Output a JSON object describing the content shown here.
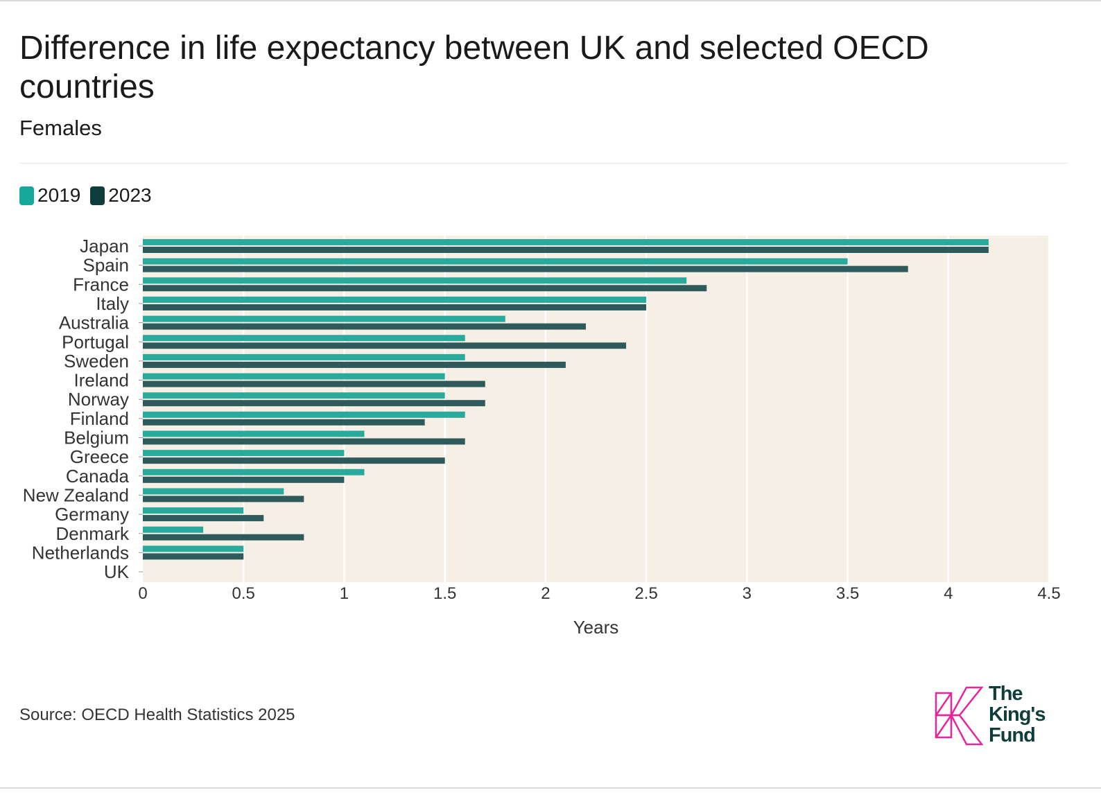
{
  "header": {
    "title": "Difference in life expectancy between UK and selected OECD countries",
    "subtitle": "Females"
  },
  "legend": [
    {
      "label": "2019",
      "color": "#17a89a"
    },
    {
      "label": "2023",
      "color": "#0f3d3e"
    }
  ],
  "chart_data": {
    "type": "bar",
    "orientation": "horizontal",
    "categories": [
      "Japan",
      "Spain",
      "France",
      "Italy",
      "Australia",
      "Portugal",
      "Sweden",
      "Ireland",
      "Norway",
      "Finland",
      "Belgium",
      "Greece",
      "Canada",
      "New Zealand",
      "Germany",
      "Denmark",
      "Netherlands",
      "UK"
    ],
    "series": [
      {
        "name": "2019",
        "color": "#2aaa9c",
        "values": [
          4.2,
          3.5,
          2.7,
          2.5,
          1.8,
          1.6,
          1.6,
          1.5,
          1.5,
          1.6,
          1.1,
          1.0,
          1.1,
          0.7,
          0.5,
          0.3,
          0.5,
          0
        ]
      },
      {
        "name": "2023",
        "color": "#2e5a5b",
        "values": [
          4.2,
          3.8,
          2.8,
          2.5,
          2.2,
          2.4,
          2.1,
          1.7,
          1.7,
          1.4,
          1.6,
          1.5,
          1.0,
          0.8,
          0.6,
          0.8,
          0.5,
          0
        ]
      }
    ],
    "xlabel": "Years",
    "ylabel": "",
    "xlim": [
      0,
      4.5
    ],
    "xticks": [
      "0",
      "0.5",
      "1",
      "1.5",
      "2",
      "2.5",
      "3",
      "3.5",
      "4",
      "4.5"
    ],
    "grid": true,
    "legend_position": "top-left",
    "plot_background": "#f5efe5"
  },
  "footer": {
    "source": "Source: OECD Health Statistics 2025",
    "logo_lines": [
      "The",
      "King's",
      "Fund"
    ],
    "logo_color": "#e6259c"
  }
}
